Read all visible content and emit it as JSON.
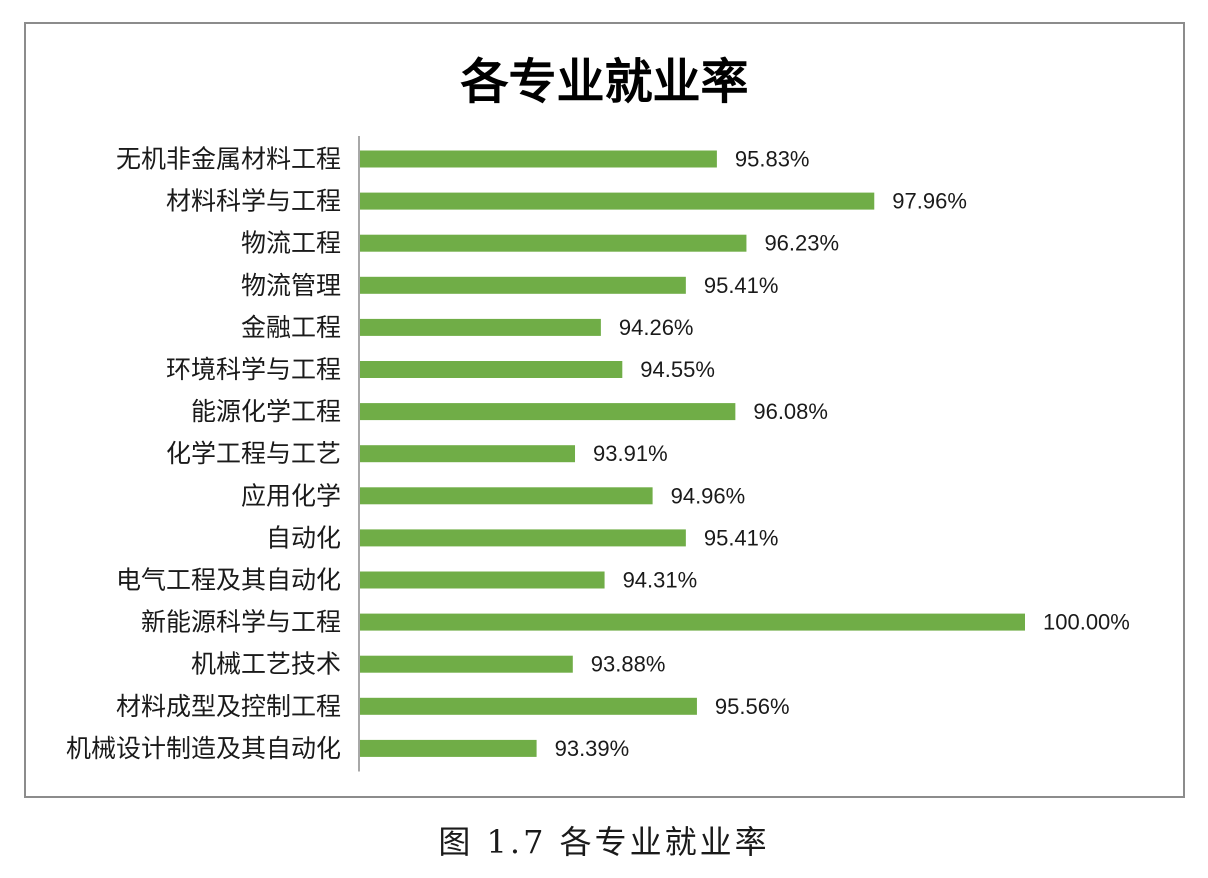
{
  "chart_data": {
    "type": "bar",
    "orientation": "horizontal",
    "title": "各专业就业率",
    "categories": [
      "无机非金属材料工程",
      "材料科学与工程",
      "物流工程",
      "物流管理",
      "金融工程",
      "环境科学与工程",
      "能源化学工程",
      "化学工程与工艺",
      "应用化学",
      "自动化",
      "电气工程及其自动化",
      "新能源科学与工程",
      "机械工艺技术",
      "材料成型及控制工程",
      "机械设计制造及其自动化"
    ],
    "values": [
      95.83,
      97.96,
      96.23,
      95.41,
      94.26,
      94.55,
      96.08,
      93.91,
      94.96,
      95.41,
      94.31,
      100.0,
      93.88,
      95.56,
      93.39
    ],
    "value_labels": [
      "95.83%",
      "97.96%",
      "96.23%",
      "95.41%",
      "94.26%",
      "94.55%",
      "96.08%",
      "93.91%",
      "94.96%",
      "95.41%",
      "94.31%",
      "100.00%",
      "93.88%",
      "95.56%",
      "93.39%"
    ],
    "xlim": [
      91,
      100
    ],
    "grid": false,
    "legend": "none",
    "bar_color": "#70ad47"
  },
  "caption": "图 1.7 各专业就业率"
}
